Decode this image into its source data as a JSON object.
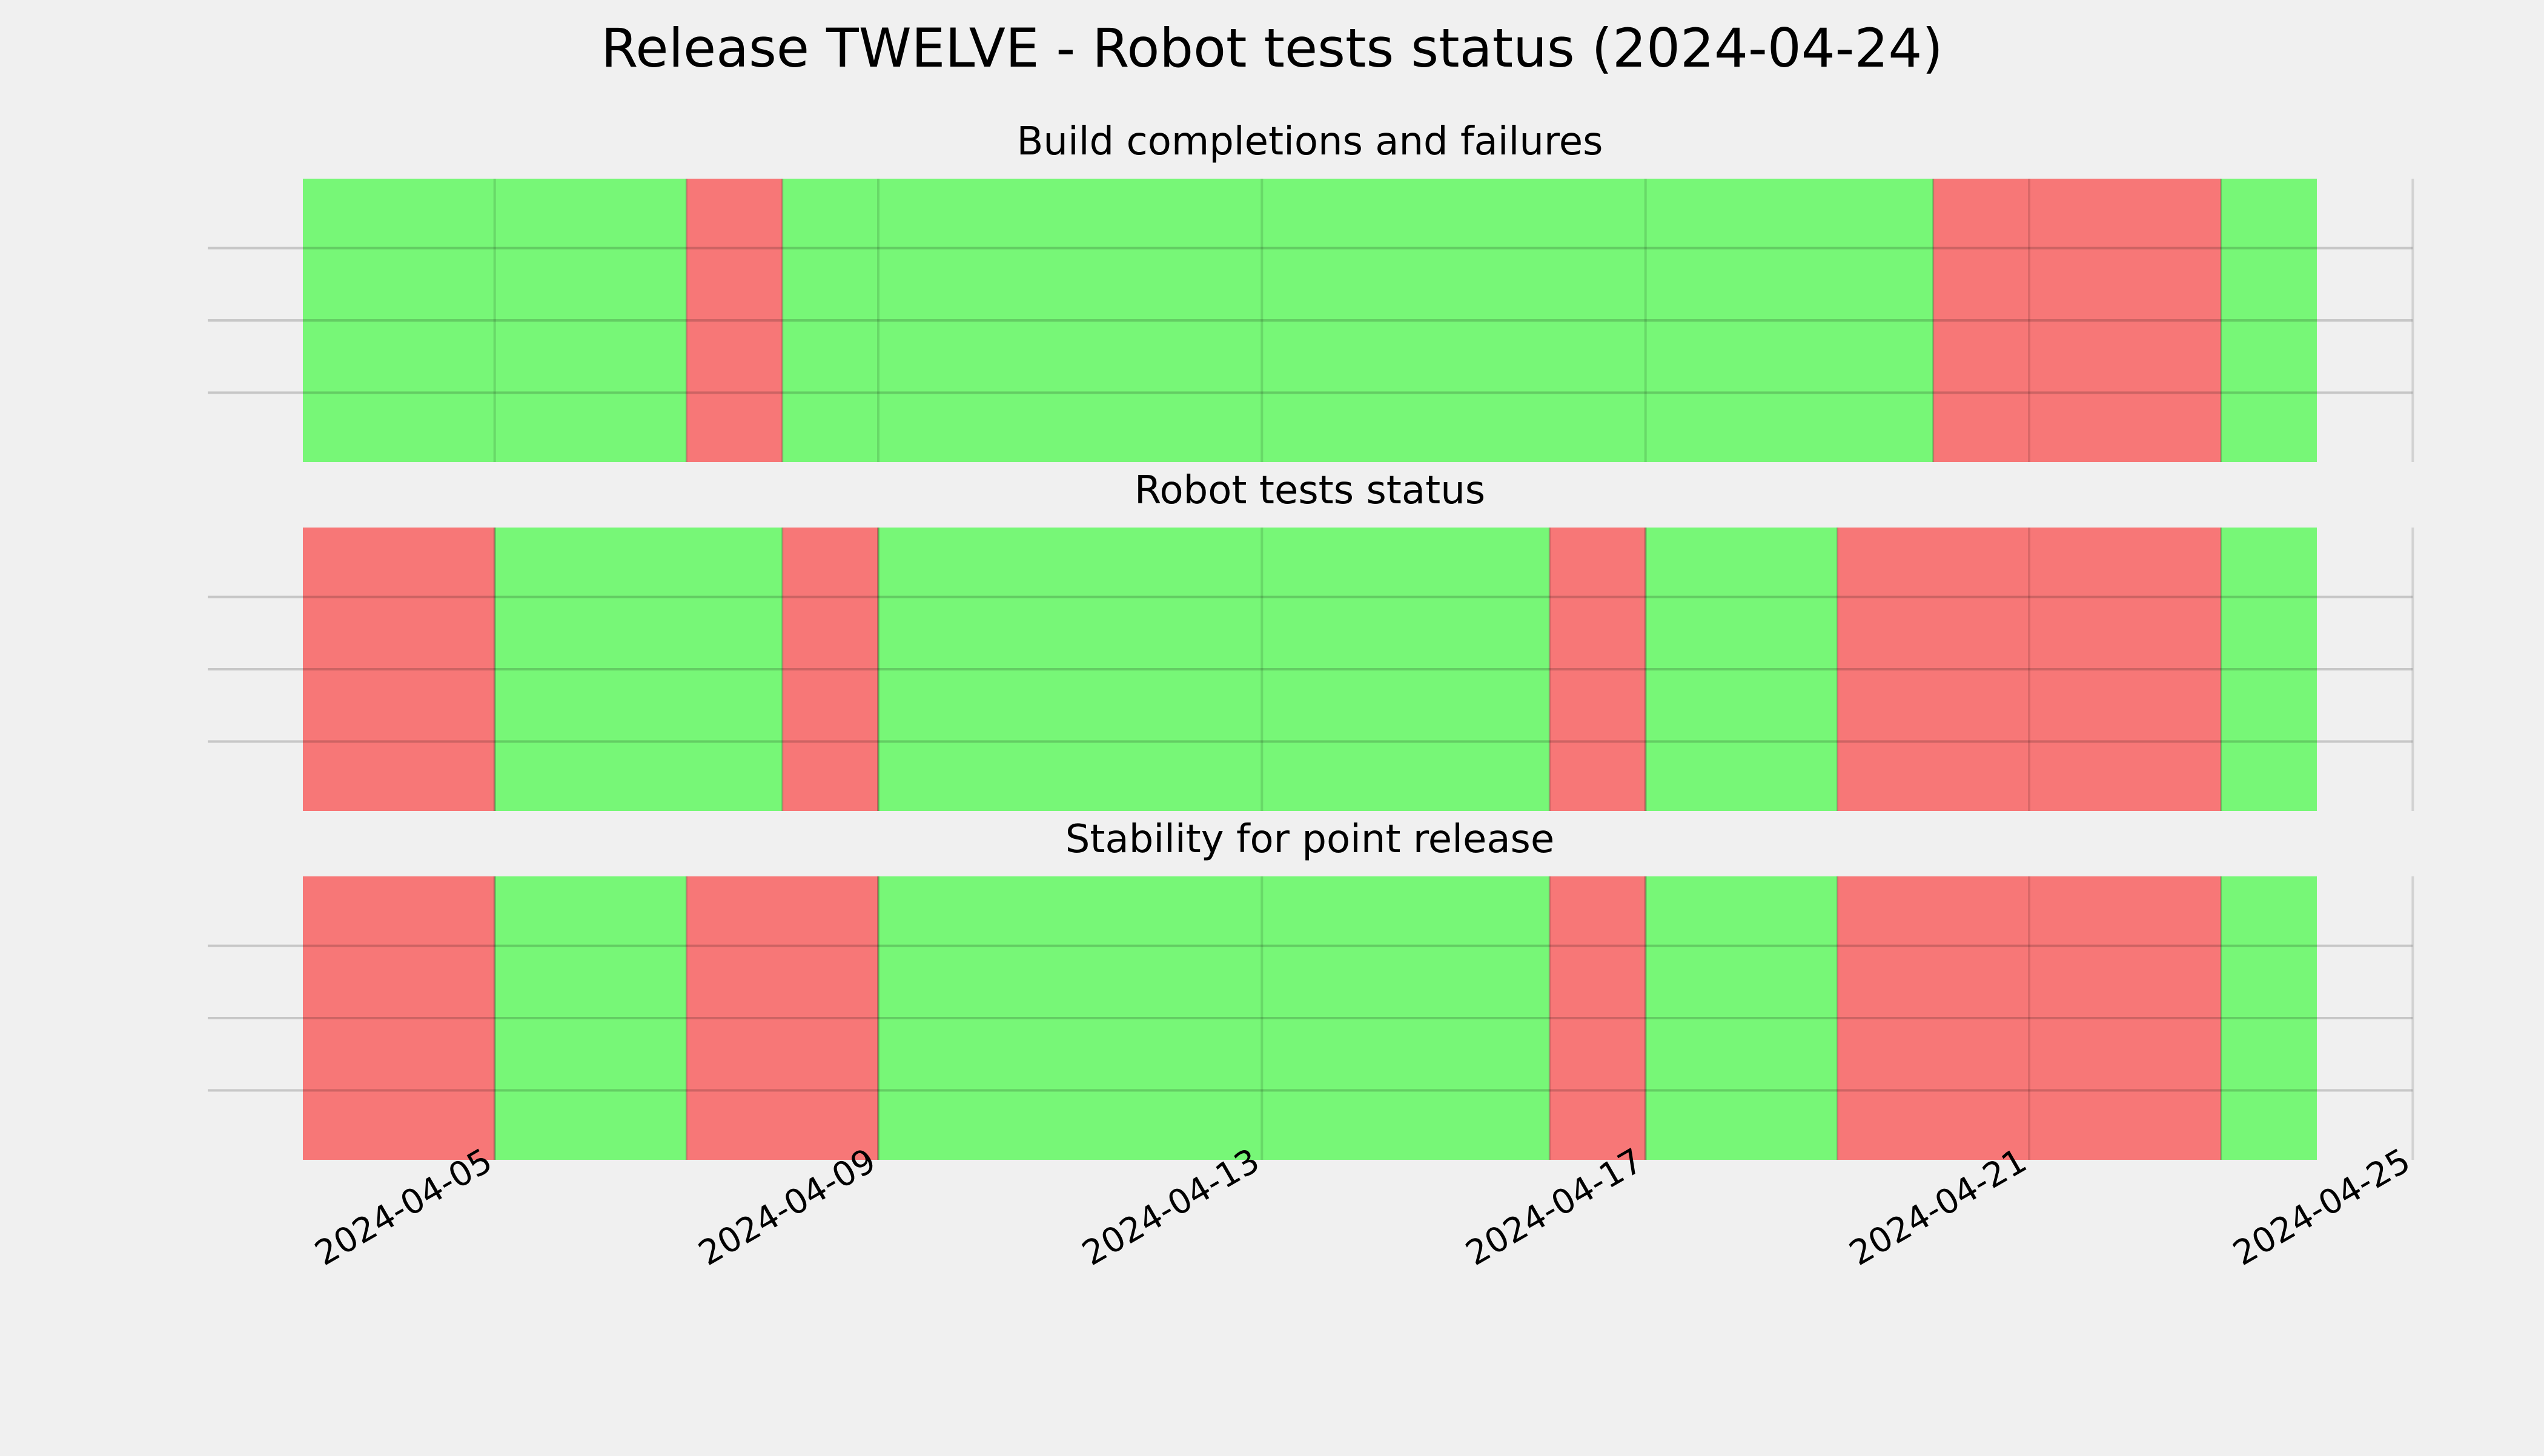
{
  "chart_data": {
    "type": "timeline",
    "title": "Release TWELVE - Robot tests status (2024-04-24)",
    "x_ticks": [
      "2024-04-05",
      "2024-04-09",
      "2024-04-13",
      "2024-04-17",
      "2024-04-21",
      "2024-04-25"
    ],
    "xlim": [
      "2024-04-03",
      "2024-04-25"
    ],
    "grid": true,
    "colors": {
      "pass": "#77f777",
      "fail": "#f77777",
      "background": "#f0f0f0",
      "grid": "#cbcbcb"
    },
    "panels": [
      {
        "title": "Build completions and failures",
        "segments": [
          {
            "start": "2024-04-03",
            "end": "2024-04-07",
            "status": "pass"
          },
          {
            "start": "2024-04-07",
            "end": "2024-04-08",
            "status": "fail"
          },
          {
            "start": "2024-04-08",
            "end": "2024-04-20",
            "status": "pass"
          },
          {
            "start": "2024-04-20",
            "end": "2024-04-23",
            "status": "fail"
          },
          {
            "start": "2024-04-23",
            "end": "2024-04-24",
            "status": "pass"
          }
        ]
      },
      {
        "title": "Robot tests status",
        "segments": [
          {
            "start": "2024-04-03",
            "end": "2024-04-05",
            "status": "fail"
          },
          {
            "start": "2024-04-05",
            "end": "2024-04-08",
            "status": "pass"
          },
          {
            "start": "2024-04-08",
            "end": "2024-04-09",
            "status": "fail"
          },
          {
            "start": "2024-04-09",
            "end": "2024-04-16",
            "status": "pass"
          },
          {
            "start": "2024-04-16",
            "end": "2024-04-17",
            "status": "fail"
          },
          {
            "start": "2024-04-17",
            "end": "2024-04-19",
            "status": "pass"
          },
          {
            "start": "2024-04-19",
            "end": "2024-04-23",
            "status": "fail"
          },
          {
            "start": "2024-04-23",
            "end": "2024-04-24",
            "status": "pass"
          }
        ]
      },
      {
        "title": "Stability for point release",
        "segments": [
          {
            "start": "2024-04-03",
            "end": "2024-04-05",
            "status": "fail"
          },
          {
            "start": "2024-04-05",
            "end": "2024-04-07",
            "status": "pass"
          },
          {
            "start": "2024-04-07",
            "end": "2024-04-09",
            "status": "fail"
          },
          {
            "start": "2024-04-09",
            "end": "2024-04-16",
            "status": "pass"
          },
          {
            "start": "2024-04-16",
            "end": "2024-04-17",
            "status": "fail"
          },
          {
            "start": "2024-04-17",
            "end": "2024-04-19",
            "status": "pass"
          },
          {
            "start": "2024-04-19",
            "end": "2024-04-23",
            "status": "fail"
          },
          {
            "start": "2024-04-23",
            "end": "2024-04-24",
            "status": "pass"
          }
        ]
      }
    ]
  }
}
